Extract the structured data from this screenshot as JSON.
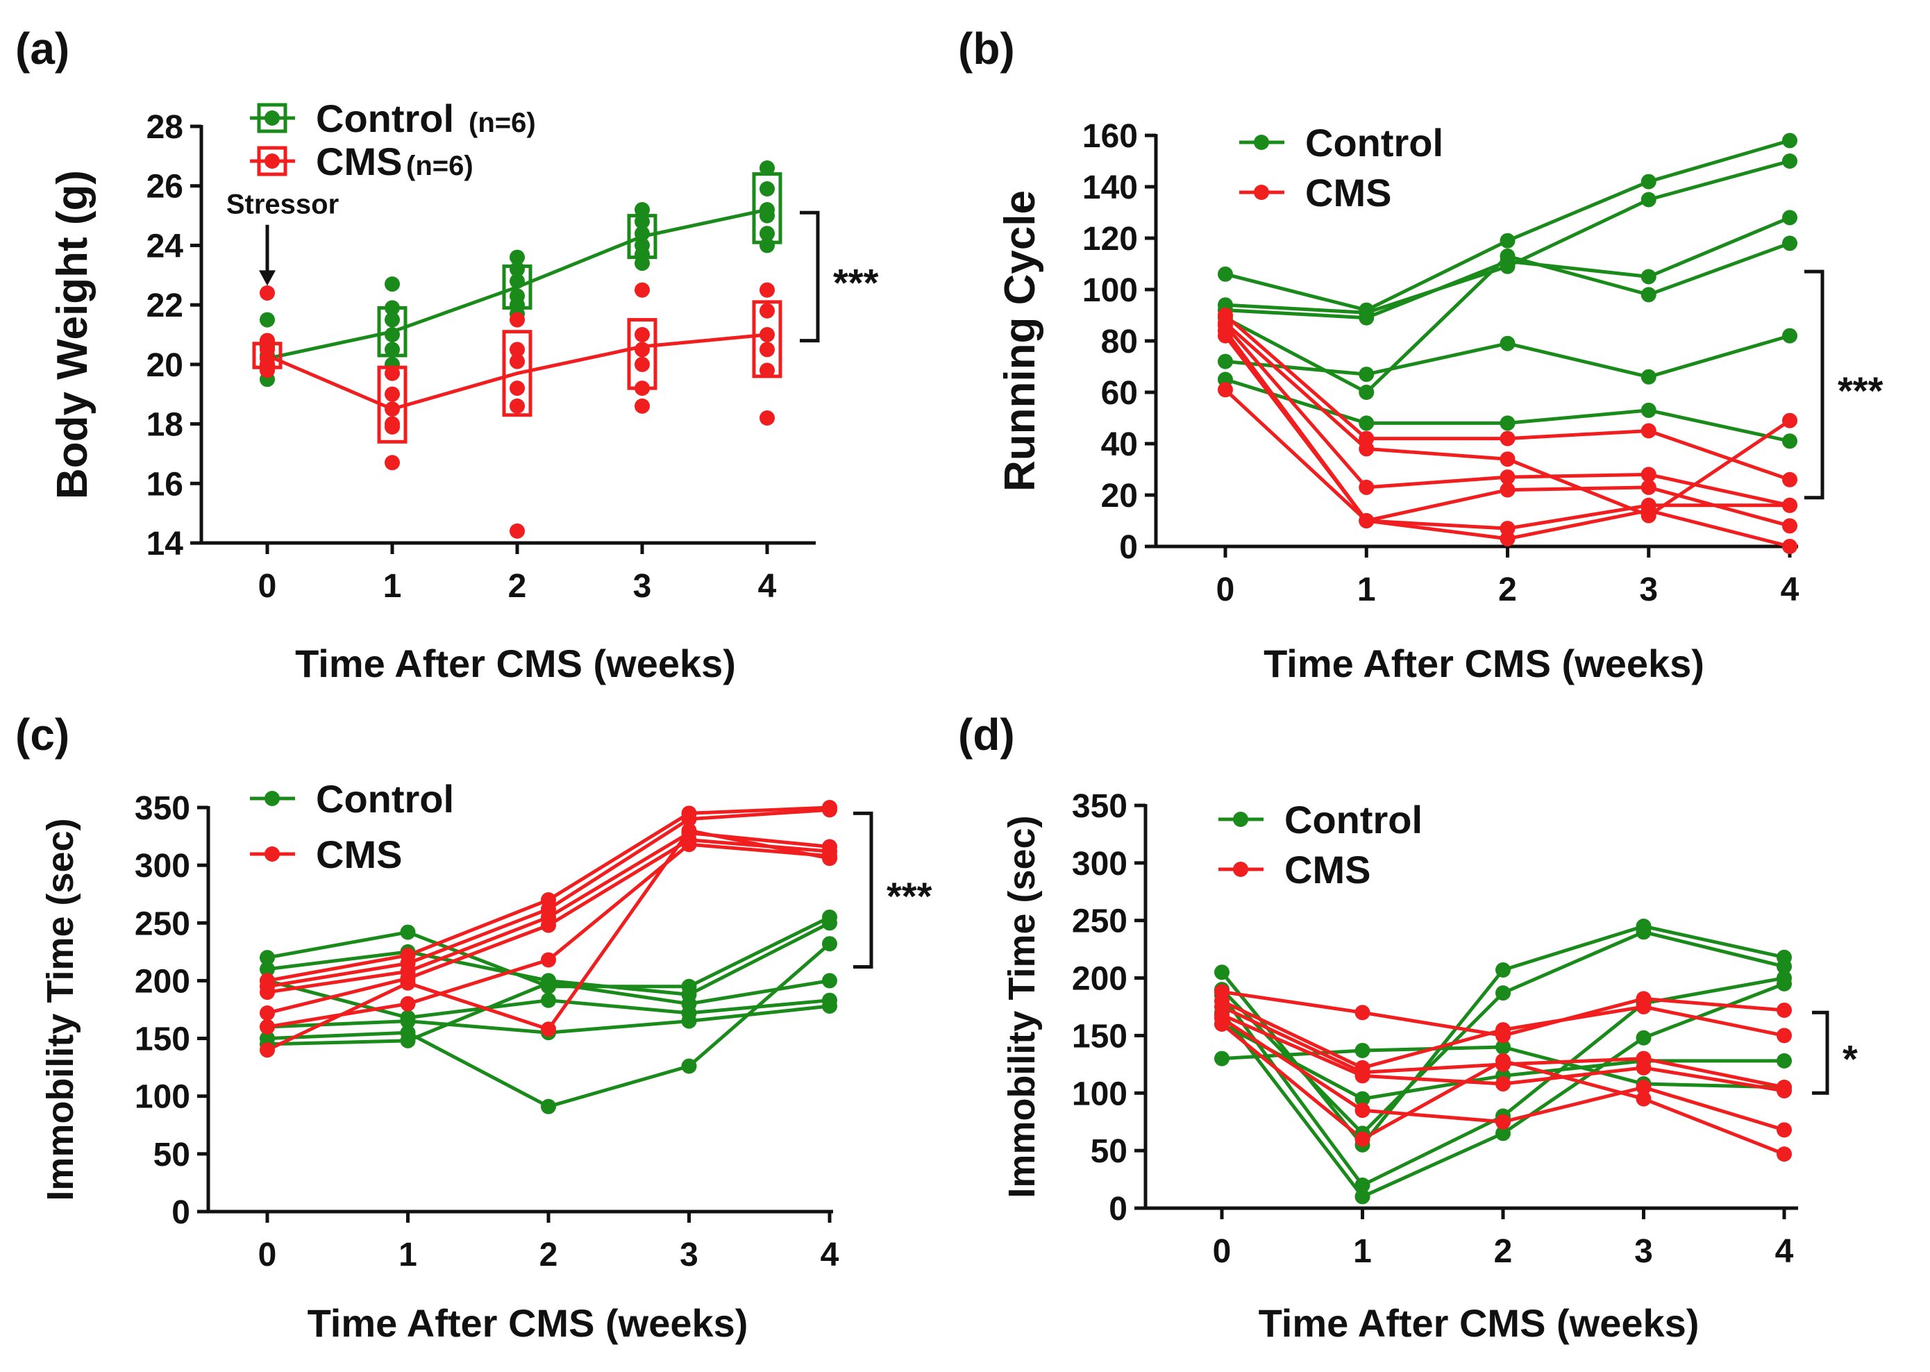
{
  "colors": {
    "control": "#1a8a1a",
    "cms": "#f01e1e",
    "axis": "#111111"
  },
  "chart_data": [
    {
      "id": "a",
      "panel_label": "(a)",
      "type": "line",
      "title": "",
      "xlabel": "Time After CMS (weeks)",
      "ylabel": "Body Weight (g)",
      "xlim": [
        0,
        4
      ],
      "ylim": [
        14,
        28
      ],
      "xticks": [
        0,
        1,
        2,
        3,
        4
      ],
      "yticks": [
        14,
        16,
        18,
        20,
        22,
        24,
        26,
        28
      ],
      "legend": [
        {
          "label": "Control",
          "n": "(n=6)",
          "color_key": "control"
        },
        {
          "label": "CMS",
          "n": "(n=6)",
          "color_key": "cms"
        }
      ],
      "annotation": "Stressor",
      "significance": "***",
      "means": {
        "control": [
          20.2,
          21.1,
          22.6,
          24.3,
          25.2
        ],
        "cms": [
          20.3,
          18.5,
          19.7,
          20.6,
          21.0
        ]
      },
      "boxes": {
        "control": [
          [
            19.9,
            20.7
          ],
          [
            20.3,
            21.9
          ],
          [
            21.9,
            23.3
          ],
          [
            23.6,
            25.0
          ],
          [
            24.1,
            26.4
          ]
        ],
        "cms": [
          [
            19.9,
            20.7
          ],
          [
            17.4,
            19.9
          ],
          [
            18.3,
            21.1
          ],
          [
            19.2,
            21.5
          ],
          [
            19.6,
            22.1
          ]
        ]
      },
      "points": {
        "control": [
          [
            20.3,
            20.6,
            21.5,
            19.5,
            20.0,
            20.8
          ],
          [
            22.7,
            21.9,
            21.5,
            20.5,
            20.0,
            21.0
          ],
          [
            23.6,
            23.2,
            22.8,
            22.3,
            22.0,
            21.7
          ],
          [
            25.2,
            24.8,
            24.4,
            24.0,
            23.7,
            23.4
          ],
          [
            26.6,
            25.9,
            25.0,
            24.4,
            24.0,
            25.2
          ]
        ],
        "cms": [
          [
            22.4,
            20.8,
            20.5,
            20.0,
            19.8,
            20.2
          ],
          [
            19.7,
            19.0,
            18.5,
            18.0,
            17.9,
            16.7
          ],
          [
            21.5,
            20.5,
            20.1,
            19.2,
            18.6,
            14.4
          ],
          [
            22.5,
            21.0,
            20.5,
            20.0,
            19.2,
            18.6
          ],
          [
            22.5,
            21.8,
            21.0,
            20.5,
            19.8,
            18.2
          ]
        ]
      }
    },
    {
      "id": "b",
      "panel_label": "(b)",
      "type": "line",
      "title": "",
      "xlabel": "Time After CMS (weeks)",
      "ylabel": "Running Cycle",
      "xlim": [
        0,
        4
      ],
      "ylim": [
        0,
        160
      ],
      "xticks": [
        0,
        1,
        2,
        3,
        4
      ],
      "yticks": [
        0,
        20,
        40,
        60,
        80,
        100,
        120,
        140,
        160
      ],
      "legend": [
        {
          "label": "Control",
          "color_key": "control"
        },
        {
          "label": "CMS",
          "color_key": "cms"
        }
      ],
      "significance": "***",
      "bracket": [
        19,
        107
      ],
      "series": [
        {
          "group": "control",
          "values": [
            106,
            92,
            119,
            142,
            158
          ]
        },
        {
          "group": "control",
          "values": [
            94,
            91,
            109,
            135,
            150
          ]
        },
        {
          "group": "control",
          "values": [
            92,
            89,
            111,
            105,
            128
          ]
        },
        {
          "group": "control",
          "values": [
            89,
            60,
            113,
            98,
            118
          ]
        },
        {
          "group": "control",
          "values": [
            72,
            67,
            79,
            66,
            82
          ]
        },
        {
          "group": "control",
          "values": [
            65,
            48,
            48,
            53,
            41
          ]
        },
        {
          "group": "cms",
          "values": [
            90,
            42,
            42,
            45,
            26
          ]
        },
        {
          "group": "cms",
          "values": [
            87,
            38,
            34,
            12,
            49
          ]
        },
        {
          "group": "cms",
          "values": [
            86,
            23,
            27,
            28,
            16
          ]
        },
        {
          "group": "cms",
          "values": [
            84,
            10,
            22,
            23,
            8
          ]
        },
        {
          "group": "cms",
          "values": [
            82,
            10,
            7,
            16,
            16
          ]
        },
        {
          "group": "cms",
          "values": [
            61,
            10,
            3,
            14,
            0
          ]
        }
      ]
    },
    {
      "id": "c",
      "panel_label": "(c)",
      "type": "line",
      "title": "",
      "xlabel": "Time After CMS (weeks)",
      "ylabel": "Immobility Time (sec)",
      "xlim": [
        0,
        4
      ],
      "ylim": [
        0,
        350
      ],
      "xticks": [
        0,
        1,
        2,
        3,
        4
      ],
      "yticks": [
        0,
        50,
        100,
        150,
        200,
        250,
        300,
        350
      ],
      "legend": [
        {
          "label": "Control",
          "color_key": "control"
        },
        {
          "label": "CMS",
          "color_key": "cms"
        }
      ],
      "significance": "***",
      "bracket": [
        212,
        345
      ],
      "series": [
        {
          "group": "control",
          "values": [
            220,
            242,
            195,
            195,
            255
          ]
        },
        {
          "group": "control",
          "values": [
            210,
            225,
            200,
            188,
            250
          ]
        },
        {
          "group": "control",
          "values": [
            200,
            168,
            183,
            172,
            183
          ]
        },
        {
          "group": "control",
          "values": [
            160,
            165,
            155,
            165,
            178
          ]
        },
        {
          "group": "control",
          "values": [
            150,
            155,
            91,
            126,
            232
          ]
        },
        {
          "group": "control",
          "values": [
            145,
            148,
            198,
            180,
            200
          ]
        },
        {
          "group": "cms",
          "values": [
            200,
            222,
            270,
            345,
            350
          ]
        },
        {
          "group": "cms",
          "values": [
            195,
            215,
            262,
            340,
            348
          ]
        },
        {
          "group": "cms",
          "values": [
            190,
            208,
            255,
            328,
            316
          ]
        },
        {
          "group": "cms",
          "values": [
            172,
            202,
            248,
            322,
            312
          ]
        },
        {
          "group": "cms",
          "values": [
            160,
            180,
            218,
            318,
            308
          ]
        },
        {
          "group": "cms",
          "values": [
            140,
            198,
            158,
            330,
            306
          ]
        }
      ]
    },
    {
      "id": "d",
      "panel_label": "(d)",
      "type": "line",
      "title": "",
      "xlabel": "Time After CMS (weeks)",
      "ylabel": "Immobility Time (sec)",
      "xlim": [
        0,
        4
      ],
      "ylim": [
        0,
        350
      ],
      "xticks": [
        0,
        1,
        2,
        3,
        4
      ],
      "yticks": [
        0,
        50,
        100,
        150,
        200,
        250,
        300,
        350
      ],
      "legend": [
        {
          "label": "Control",
          "color_key": "control"
        },
        {
          "label": "CMS",
          "color_key": "cms"
        }
      ],
      "significance": "*",
      "bracket": [
        100,
        170
      ],
      "series": [
        {
          "group": "control",
          "values": [
            205,
            55,
            207,
            245,
            218
          ]
        },
        {
          "group": "control",
          "values": [
            190,
            65,
            187,
            240,
            210
          ]
        },
        {
          "group": "control",
          "values": [
            185,
            20,
            80,
            178,
            200
          ]
        },
        {
          "group": "control",
          "values": [
            170,
            10,
            65,
            148,
            195
          ]
        },
        {
          "group": "control",
          "values": [
            160,
            95,
            115,
            128,
            128
          ]
        },
        {
          "group": "control",
          "values": [
            130,
            137,
            140,
            108,
            105
          ]
        },
        {
          "group": "cms",
          "values": [
            188,
            170,
            150,
            182,
            172
          ]
        },
        {
          "group": "cms",
          "values": [
            180,
            122,
            155,
            175,
            150
          ]
        },
        {
          "group": "cms",
          "values": [
            175,
            118,
            125,
            130,
            105
          ]
        },
        {
          "group": "cms",
          "values": [
            168,
            115,
            108,
            122,
            102
          ]
        },
        {
          "group": "cms",
          "values": [
            165,
            85,
            75,
            105,
            68
          ]
        },
        {
          "group": "cms",
          "values": [
            160,
            60,
            128,
            95,
            47
          ]
        }
      ]
    }
  ]
}
